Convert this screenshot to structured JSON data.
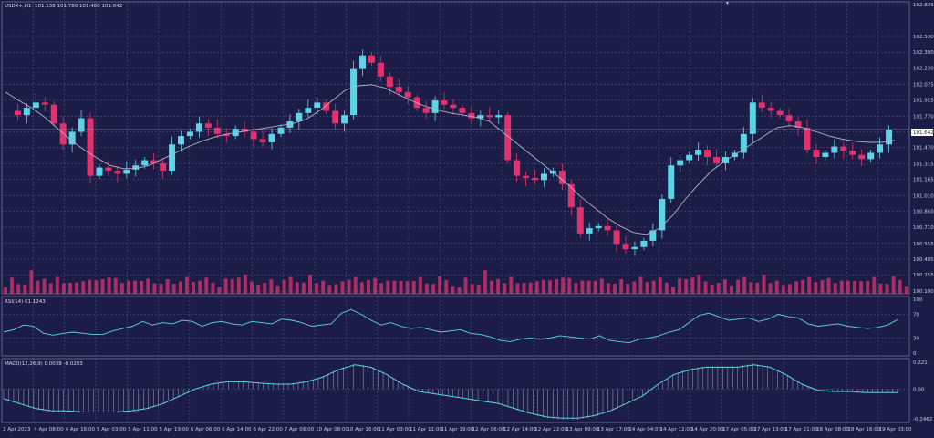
{
  "chart_data": [
    {
      "type": "candlestick",
      "title": "USDX+,H1",
      "ohlc_label": "101.538 101.780 101.480 101.642",
      "price_axis": [
        "102.835",
        "102.530",
        "102.380",
        "102.230",
        "102.075",
        "101.925",
        "101.770",
        "101.620",
        "101.470",
        "101.315",
        "101.165",
        "101.010",
        "100.860",
        "100.710",
        "100.555",
        "100.405",
        "100.255",
        "100.100"
      ],
      "current_price": "101.642",
      "ylim": [
        100.1,
        102.835
      ],
      "x_labels": [
        "2 Apr 2023",
        "4 Apr 08:00",
        "4 Apr 16:00",
        "5 Apr 03:00",
        "5 Apr 11:00",
        "5 Apr 19:00",
        "6 Apr 06:00",
        "6 Apr 14:00",
        "6 Apr 22:00",
        "7 Apr 09:00",
        "10 Apr 08:00",
        "10 Apr 16:00",
        "11 Apr 03:00",
        "11 Apr 11:00",
        "11 Apr 19:00",
        "12 Apr 06:00",
        "12 Apr 14:00",
        "12 Apr 22:00",
        "13 Apr 09:00",
        "13 Apr 17:00",
        "14 Apr 04:00",
        "14 Apr 12:00",
        "14 Apr 20:00",
        "17 Apr 05:00",
        "17 Apr 13:00",
        "17 Apr 21:00",
        "18 Apr 08:00",
        "18 Apr 16:00",
        "19 Apr 03:00"
      ],
      "close_path": [
        101.82,
        101.78,
        101.85,
        101.9,
        101.88,
        101.7,
        101.5,
        101.62,
        101.75,
        101.2,
        101.28,
        101.25,
        101.22,
        101.26,
        101.3,
        101.35,
        101.32,
        101.25,
        101.5,
        101.58,
        101.62,
        101.7,
        101.66,
        101.6,
        101.58,
        101.65,
        101.62,
        101.55,
        101.52,
        101.6,
        101.66,
        101.72,
        101.8,
        101.85,
        101.9,
        101.82,
        101.7,
        101.78,
        102.22,
        102.35,
        102.28,
        102.15,
        102.05,
        102.0,
        101.95,
        101.85,
        101.8,
        101.92,
        101.88,
        101.85,
        101.8,
        101.75,
        101.78,
        101.76,
        101.78,
        101.35,
        101.2,
        101.18,
        101.16,
        101.22,
        101.25,
        101.12,
        100.9,
        100.65,
        100.7,
        100.72,
        100.68,
        100.55,
        100.5,
        100.52,
        100.58,
        100.68,
        100.98,
        101.3,
        101.35,
        101.4,
        101.45,
        101.38,
        101.32,
        101.38,
        101.42,
        101.6,
        101.9,
        101.85,
        101.82,
        101.78,
        101.72,
        101.66,
        101.45,
        101.38,
        101.42,
        101.48,
        101.44,
        101.4,
        101.36,
        101.42,
        101.5,
        101.64
      ],
      "ma_path": [
        102.0,
        101.92,
        101.85,
        101.76,
        101.65,
        101.54,
        101.45,
        101.37,
        101.3,
        101.27,
        101.27,
        101.3,
        101.36,
        101.42,
        101.48,
        101.53,
        101.57,
        101.6,
        101.62,
        101.64,
        101.66,
        101.68,
        101.7,
        101.74,
        101.82,
        101.92,
        102.02,
        102.06,
        102.07,
        102.04,
        101.98,
        101.92,
        101.87,
        101.83,
        101.8,
        101.78,
        101.76,
        101.72,
        101.62,
        101.52,
        101.42,
        101.32,
        101.22,
        101.12,
        101.0,
        100.9,
        100.8,
        100.72,
        100.66,
        100.64,
        100.7,
        100.82,
        100.98,
        101.12,
        101.25,
        101.34,
        101.42,
        101.5,
        101.58,
        101.66,
        101.68,
        101.66,
        101.62,
        101.58,
        101.55,
        101.53,
        101.52,
        101.52,
        101.54
      ],
      "volume_path": [
        0.3,
        0.5,
        0.35,
        0.4,
        0.7,
        0.45,
        0.6,
        0.3,
        0.55,
        0.4,
        0.5,
        0.35,
        0.45,
        0.6,
        0.4,
        0.5,
        0.65,
        0.45,
        0.35,
        0.5,
        0.6,
        0.4,
        0.55,
        0.45,
        0.3,
        0.5,
        0.4,
        0.35,
        0.55,
        0.45,
        0.6,
        0.5,
        0.4,
        0.3,
        0.45,
        0.5,
        0.65,
        0.55,
        0.4,
        0.35,
        0.5,
        0.45,
        0.3,
        0.6,
        0.5,
        0.4,
        0.45,
        0.55,
        0.35,
        0.5,
        0.4,
        0.3,
        0.45,
        0.6,
        0.5,
        0.4,
        0.55,
        0.45,
        0.35,
        0.5,
        0.6,
        0.4,
        0.45,
        0.55,
        0.5,
        0.35,
        0.4,
        0.5,
        0.45,
        0.3
      ]
    },
    {
      "type": "line",
      "title": "RSI(14) 61.1243",
      "y_ticks": [
        "100",
        "70",
        "30",
        "0"
      ],
      "ylim": [
        0,
        100
      ],
      "values": [
        40,
        44,
        52,
        50,
        38,
        35,
        38,
        40,
        38,
        36,
        36,
        42,
        46,
        50,
        58,
        52,
        56,
        54,
        60,
        58,
        50,
        56,
        58,
        54,
        52,
        58,
        56,
        54,
        62,
        60,
        56,
        50,
        52,
        54,
        72,
        78,
        70,
        60,
        52,
        56,
        50,
        46,
        48,
        44,
        40,
        42,
        44,
        38,
        36,
        32,
        26,
        24,
        28,
        30,
        28,
        30,
        34,
        32,
        30,
        28,
        34,
        26,
        24,
        22,
        28,
        30,
        34,
        40,
        44,
        56,
        68,
        72,
        66,
        60,
        62,
        64,
        58,
        62,
        70,
        66,
        64,
        54,
        50,
        52,
        54,
        50,
        48,
        46,
        48,
        52,
        61
      ]
    },
    {
      "type": "area",
      "title": "MACD(12,26,9) 0.0038 -0.0283",
      "y_ticks": [
        "0.221",
        "0.00",
        "-0.2462"
      ],
      "ylim": [
        -0.2462,
        0.221
      ],
      "values": [
        -0.08,
        -0.12,
        -0.16,
        -0.18,
        -0.18,
        -0.19,
        -0.19,
        -0.19,
        -0.18,
        -0.16,
        -0.12,
        -0.06,
        0.0,
        0.04,
        0.06,
        0.06,
        0.05,
        0.04,
        0.04,
        0.06,
        0.1,
        0.16,
        0.2,
        0.18,
        0.12,
        0.04,
        -0.02,
        -0.04,
        -0.06,
        -0.08,
        -0.1,
        -0.12,
        -0.16,
        -0.2,
        -0.23,
        -0.24,
        -0.24,
        -0.22,
        -0.18,
        -0.12,
        -0.06,
        0.04,
        0.12,
        0.16,
        0.18,
        0.18,
        0.18,
        0.2,
        0.18,
        0.12,
        0.04,
        -0.01,
        -0.02,
        -0.02,
        -0.03,
        -0.03,
        -0.03
      ]
    }
  ],
  "colors": {
    "background": "#1b1d47",
    "grid": "#5b5e8c",
    "bull": "#5fd3e6",
    "bear": "#e0326e",
    "ma": "#b0b2c8",
    "rsi": "#5fd3e6",
    "macd": "#5fd3e6",
    "histogram": "#c8c9d8",
    "price_tag": "#ffffff"
  }
}
